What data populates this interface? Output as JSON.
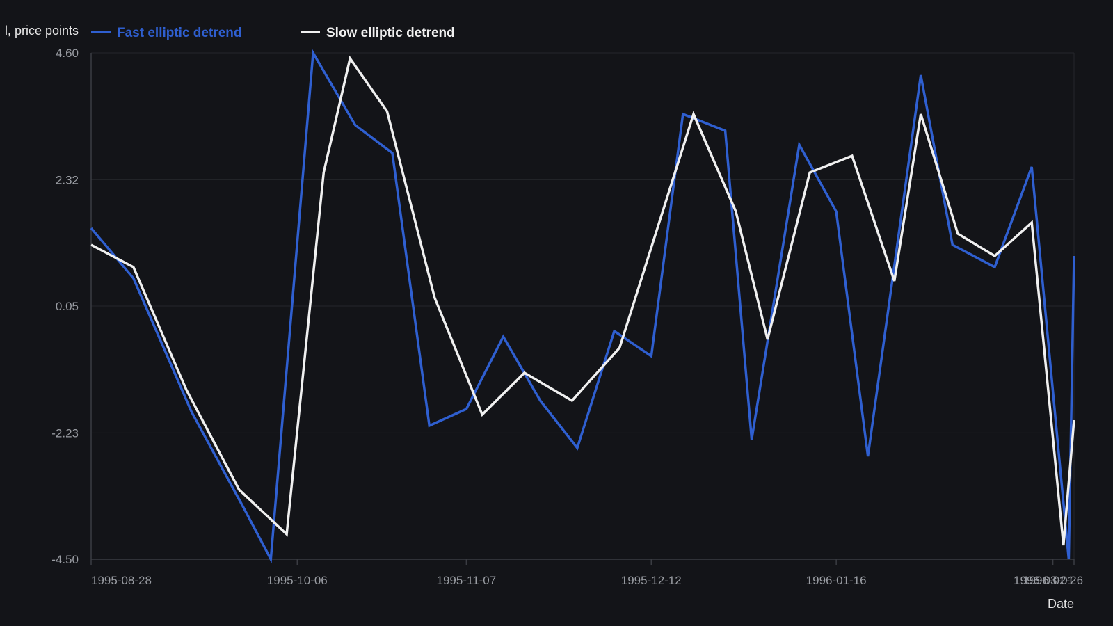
{
  "chart_data": {
    "type": "line",
    "title": "",
    "xlabel": "Date",
    "ylabel": "l, price points",
    "x": [
      "1995-08-28",
      "1995-09-05",
      "1995-09-13",
      "1995-09-21",
      "1995-09-29",
      "1995-10-07",
      "1995-10-15",
      "1995-10-23",
      "1995-10-31",
      "1995-11-08",
      "1995-11-16",
      "1995-11-24",
      "1995-12-02",
      "1995-12-10",
      "1995-12-18",
      "1995-12-26",
      "1996-01-03",
      "1996-01-11",
      "1996-01-19",
      "1996-01-27",
      "1996-02-04",
      "1996-02-12",
      "1996-02-20",
      "1996-02-28",
      "1996-03-01"
    ],
    "x_ticks": [
      "1995-08-28",
      "1995-10-06",
      "1995-11-07",
      "1995-12-12",
      "1996-01-16",
      "1996-02-26",
      "1996-03-01"
    ],
    "x_tick_labels": [
      "1995-08-28",
      "1995-10-06",
      "1995-11-07",
      "1995-12-12",
      "1996-01-16",
      "1996-02-26",
      "1996-03-01"
    ],
    "y_ticks": [
      4.6,
      2.32,
      0.05,
      -2.23,
      -4.5
    ],
    "y_tick_labels": [
      "4.60",
      "2.32",
      "0.05",
      "-2.23",
      "-4.50"
    ],
    "ylim": [
      -4.5,
      4.6
    ],
    "grid": true,
    "legend_position": "top-left",
    "series": [
      {
        "name": "Fast elliptic detrend",
        "color": "#2f5fd0",
        "points": [
          [
            "1995-08-28",
            1.45
          ],
          [
            "1995-09-05",
            0.55
          ],
          [
            "1995-09-16",
            -1.85
          ],
          [
            "1995-09-26",
            -3.6
          ],
          [
            "1995-10-01",
            -4.5
          ],
          [
            "1995-10-09",
            4.6
          ],
          [
            "1995-10-17",
            3.3
          ],
          [
            "1995-10-24",
            2.8
          ],
          [
            "1995-10-31",
            -2.1
          ],
          [
            "1995-11-07",
            -1.8
          ],
          [
            "1995-11-14",
            -0.5
          ],
          [
            "1995-11-21",
            -1.65
          ],
          [
            "1995-11-28",
            -2.5
          ],
          [
            "1995-12-05",
            -0.4
          ],
          [
            "1995-12-12",
            -0.85
          ],
          [
            "1995-12-18",
            3.5
          ],
          [
            "1995-12-26",
            3.2
          ],
          [
            "1995-12-31",
            -2.35
          ],
          [
            "1996-01-09",
            2.95
          ],
          [
            "1996-01-16",
            1.75
          ],
          [
            "1996-01-22",
            -2.65
          ],
          [
            "1996-02-01",
            4.2
          ],
          [
            "1996-02-07",
            1.15
          ],
          [
            "1996-02-15",
            0.75
          ],
          [
            "1996-02-22",
            2.55
          ],
          [
            "1996-02-29",
            -4.5
          ],
          [
            "1996-03-01",
            0.95
          ]
        ]
      },
      {
        "name": "Slow elliptic detrend",
        "color": "#f0f0f0",
        "points": [
          [
            "1995-08-28",
            1.15
          ],
          [
            "1995-09-05",
            0.75
          ],
          [
            "1995-09-15",
            -1.45
          ],
          [
            "1995-09-25",
            -3.25
          ],
          [
            "1995-10-04",
            -4.05
          ],
          [
            "1995-10-11",
            2.45
          ],
          [
            "1995-10-16",
            4.5
          ],
          [
            "1995-10-23",
            3.55
          ],
          [
            "1995-11-01",
            0.2
          ],
          [
            "1995-11-10",
            -1.9
          ],
          [
            "1995-11-18",
            -1.15
          ],
          [
            "1995-11-27",
            -1.65
          ],
          [
            "1995-12-06",
            -0.7
          ],
          [
            "1995-12-20",
            3.5
          ],
          [
            "1995-12-28",
            1.75
          ],
          [
            "1996-01-03",
            -0.55
          ],
          [
            "1996-01-11",
            2.45
          ],
          [
            "1996-01-19",
            2.75
          ],
          [
            "1996-01-27",
            0.5
          ],
          [
            "1996-02-01",
            3.5
          ],
          [
            "1996-02-08",
            1.35
          ],
          [
            "1996-02-15",
            0.95
          ],
          [
            "1996-02-22",
            1.55
          ],
          [
            "1996-02-28",
            -4.25
          ],
          [
            "1996-03-01",
            -2.0
          ]
        ]
      }
    ]
  }
}
